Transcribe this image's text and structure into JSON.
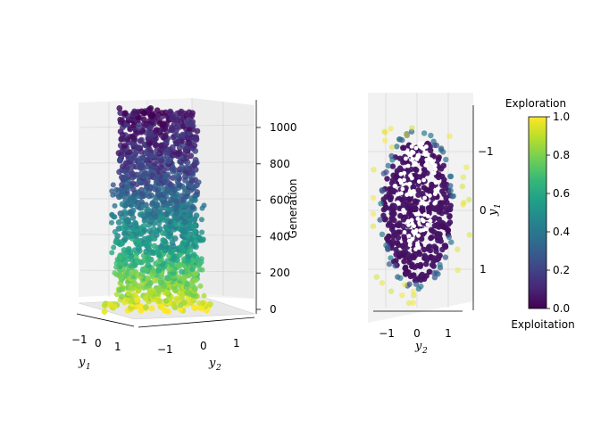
{
  "chart_data": [
    {
      "type": "scatter",
      "projection": "3d",
      "xlabel": "y1",
      "ylabel": "y2",
      "zlabel": "Generation",
      "x_ticks": [
        "−1",
        "0",
        "1"
      ],
      "y_ticks": [
        "−1",
        "0",
        "1"
      ],
      "z_ticks": [
        "0",
        "200",
        "400",
        "600",
        "800",
        "1000"
      ],
      "z_range": [
        0,
        1100
      ],
      "generations": 1100,
      "colored_by": "Exploration",
      "color_profile": [
        {
          "generation": 0,
          "value": 1.0
        },
        {
          "generation": 50,
          "value": 0.9
        },
        {
          "generation": 200,
          "value": 0.75
        },
        {
          "generation": 350,
          "value": 0.55
        },
        {
          "generation": 500,
          "value": 0.45
        },
        {
          "generation": 700,
          "value": 0.25
        },
        {
          "generation": 900,
          "value": 0.12
        },
        {
          "generation": 1100,
          "value": 0.05
        }
      ],
      "grid": true
    },
    {
      "type": "scatter",
      "projection": "3d-topdown",
      "xlabel": "y2",
      "ylabel": "y1",
      "x_ticks": [
        "−1",
        "0",
        "1"
      ],
      "y_ticks": [
        "−1",
        "0",
        "1"
      ],
      "population_extent": {
        "y2": [
          -1,
          1
        ],
        "y1": [
          -1.4,
          1.4
        ]
      },
      "highlighted_points": "white",
      "grid": true
    }
  ],
  "colorbar": {
    "title": "Exploration",
    "bottom_label": "Exploitation",
    "ticks": [
      "0.0",
      "0.2",
      "0.4",
      "0.6",
      "0.8",
      "1.0"
    ],
    "range": [
      0,
      1
    ],
    "colormap": "viridis"
  },
  "colors": {
    "viridis": [
      "#440154",
      "#482878",
      "#3e4989",
      "#31688e",
      "#26828e",
      "#1f9e89",
      "#35b779",
      "#6ece58",
      "#b5de2b",
      "#fde725"
    ],
    "highlight": "#ffffff"
  }
}
